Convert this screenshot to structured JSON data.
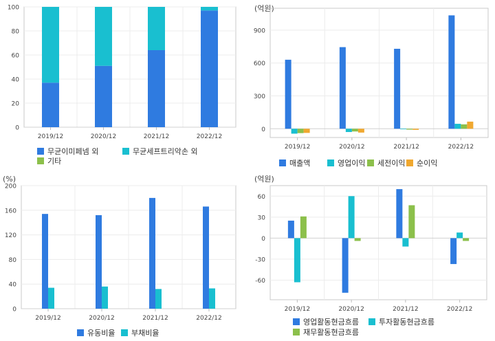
{
  "chart_data": [
    {
      "type": "bar",
      "stacked": true,
      "categories": [
        "2019/12",
        "2020/12",
        "2021/12",
        "2022/12"
      ],
      "series": [
        {
          "name": "무균이미페넴 외",
          "color": "#2f7be0",
          "values": [
            37,
            51,
            64,
            97
          ]
        },
        {
          "name": "무균세프트리악손 외",
          "color": "#19bfd0",
          "values": [
            63,
            49,
            36,
            3
          ]
        },
        {
          "name": "기타",
          "color": "#8cc04b",
          "values": [
            0,
            0,
            0,
            0
          ]
        }
      ],
      "yticks": [
        "0",
        "20",
        "40",
        "60",
        "80",
        "100"
      ],
      "ylim": [
        0,
        100
      ],
      "unit": "",
      "grid": true,
      "legend": "bottom"
    },
    {
      "type": "bar",
      "categories": [
        "2019/12",
        "2020/12",
        "2021/12",
        "2022/12"
      ],
      "series": [
        {
          "name": "매출액",
          "color": "#2f7be0",
          "values": [
            630,
            745,
            730,
            1035
          ]
        },
        {
          "name": "영업이익",
          "color": "#19bfd0",
          "values": [
            -45,
            -30,
            -5,
            45
          ]
        },
        {
          "name": "세전이익",
          "color": "#8cc04b",
          "values": [
            -40,
            -25,
            -8,
            40
          ]
        },
        {
          "name": "순이익",
          "color": "#f0a830",
          "values": [
            -38,
            -35,
            -10,
            65
          ]
        }
      ],
      "yticks": [
        "0",
        "300",
        "600",
        "900"
      ],
      "ylim": [
        -80,
        1100
      ],
      "unit": "(억원)",
      "grid": true,
      "legend": "bottom"
    },
    {
      "type": "bar",
      "categories": [
        "2019/12",
        "2020/12",
        "2021/12",
        "2022/12"
      ],
      "series": [
        {
          "name": "유동비율",
          "color": "#2f7be0",
          "values": [
            154,
            152,
            180,
            166
          ]
        },
        {
          "name": "부채비율",
          "color": "#19bfd0",
          "values": [
            34,
            36,
            32,
            33
          ]
        }
      ],
      "yticks": [
        "0",
        "40",
        "80",
        "120",
        "160",
        "200"
      ],
      "ylim": [
        0,
        200
      ],
      "unit": "(%)",
      "grid": true,
      "legend": "bottom"
    },
    {
      "type": "bar",
      "categories": [
        "2019/12",
        "2020/12",
        "2021/12",
        "2022/12"
      ],
      "series": [
        {
          "name": "영업활동현금흐름",
          "color": "#2f7be0",
          "values": [
            25,
            -78,
            70,
            -37
          ]
        },
        {
          "name": "투자활동현금흐름",
          "color": "#19bfd0",
          "values": [
            -63,
            60,
            -12,
            8
          ]
        },
        {
          "name": "재무활동현금흐름",
          "color": "#8cc04b",
          "values": [
            31,
            -4,
            47,
            -4
          ]
        }
      ],
      "yticks": [
        "-60",
        "-30",
        "0",
        "30",
        "60"
      ],
      "ylim": [
        -88,
        75
      ],
      "unit": "(억원)",
      "grid": true,
      "legend": "bottom"
    }
  ]
}
